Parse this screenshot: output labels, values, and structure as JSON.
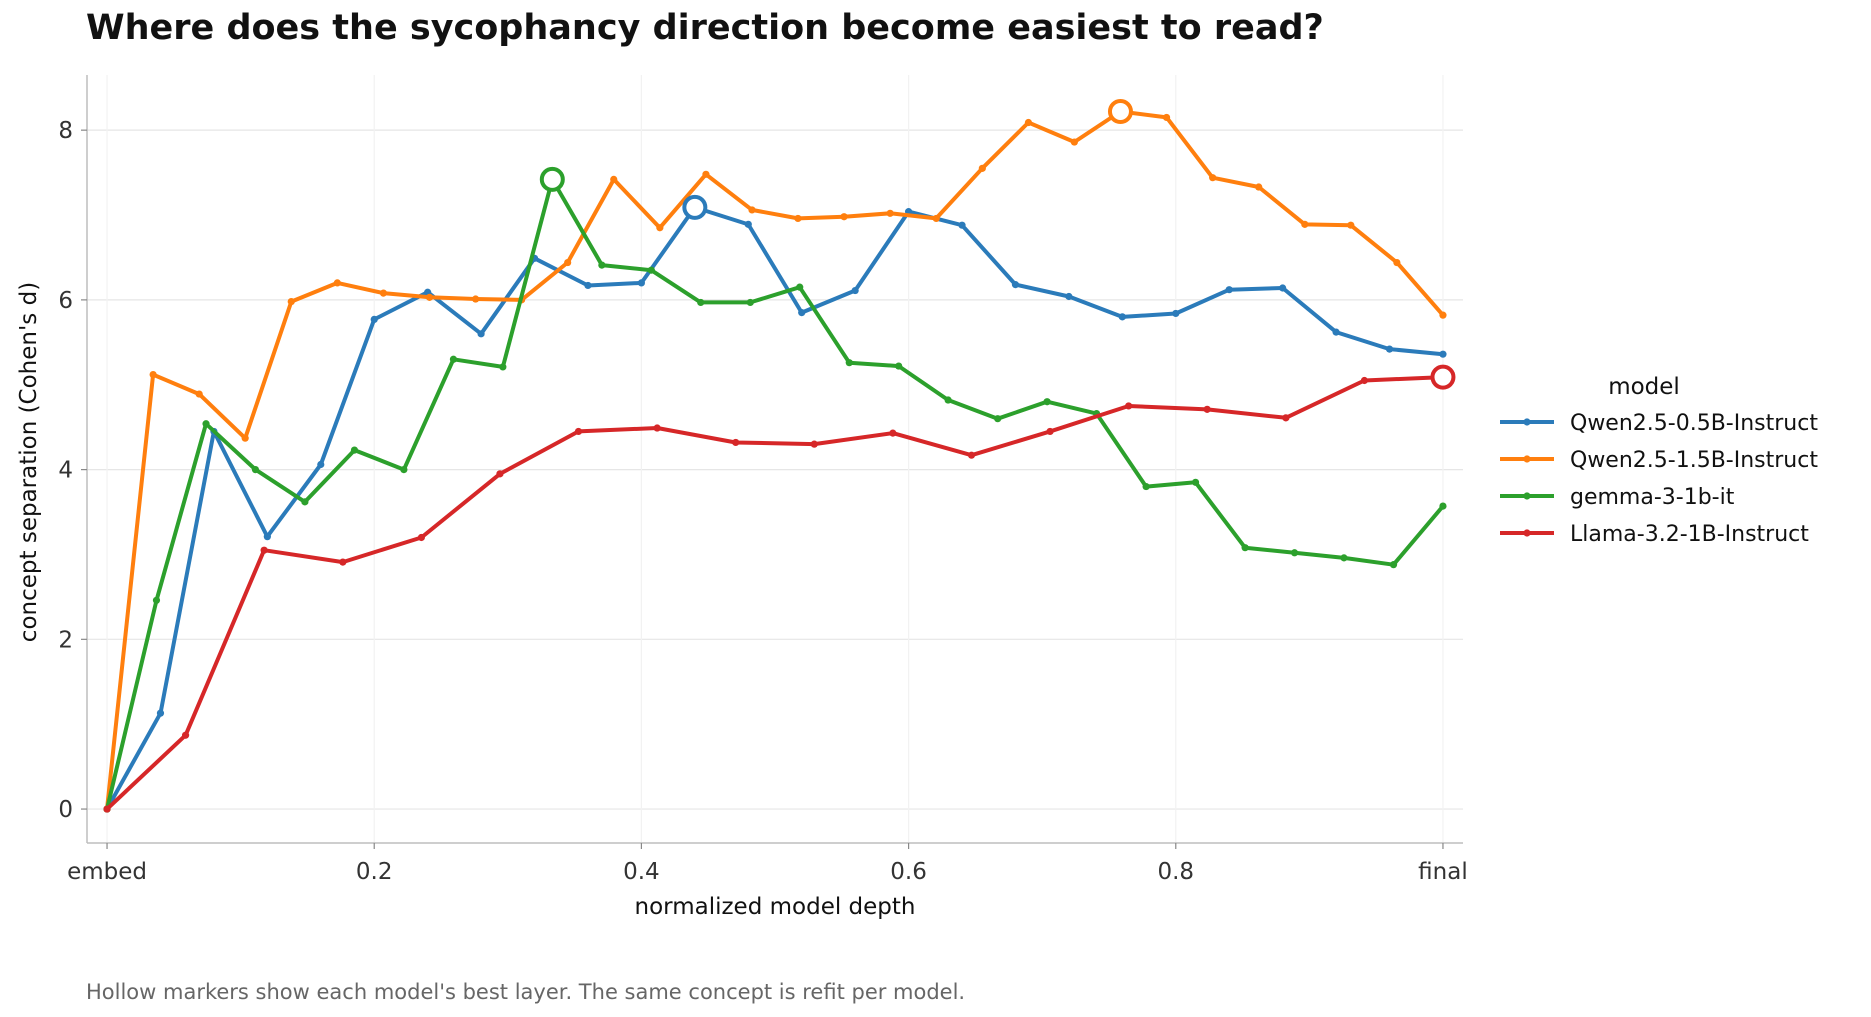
{
  "chart_data": {
    "type": "line",
    "title": "Where does the sycophancy direction become easiest to read?",
    "xlabel": "normalized model depth",
    "ylabel": "concept separation (Cohen's d)",
    "xlim": [
      -0.015,
      1.015
    ],
    "ylim": [
      -0.4,
      8.65
    ],
    "x_ticks": [
      {
        "value": 0,
        "label": "embed"
      },
      {
        "value": 0.2,
        "label": "0.2"
      },
      {
        "value": 0.4,
        "label": "0.4"
      },
      {
        "value": 0.6,
        "label": "0.6"
      },
      {
        "value": 0.8,
        "label": "0.8"
      },
      {
        "value": 1,
        "label": "final"
      }
    ],
    "y_ticks": [
      0,
      2,
      4,
      6,
      8
    ],
    "grid": true,
    "legend": {
      "title": "model",
      "position": "right"
    },
    "series": [
      {
        "name": "Qwen2.5-0.5B-Instruct",
        "color": "#2b7bba",
        "x": [
          0,
          0.04,
          0.08,
          0.12,
          0.16,
          0.2,
          0.24,
          0.28,
          0.32,
          0.36,
          0.4,
          0.44,
          0.48,
          0.52,
          0.56,
          0.6,
          0.64,
          0.68,
          0.72,
          0.76,
          0.8,
          0.84,
          0.88,
          0.92,
          0.96,
          1.0
        ],
        "y": [
          0,
          1.13,
          4.45,
          3.21,
          4.06,
          5.77,
          6.09,
          5.6,
          6.49,
          6.17,
          6.2,
          7.09,
          6.89,
          5.85,
          6.11,
          7.04,
          6.88,
          6.18,
          6.04,
          5.8,
          5.84,
          6.12,
          6.14,
          5.62,
          5.42,
          5.36
        ],
        "best": {
          "x": 0.44,
          "y": 7.09
        }
      },
      {
        "name": "Qwen2.5-1.5B-Instruct",
        "color": "#ff7f0e",
        "x": [
          0,
          0.0345,
          0.069,
          0.1034,
          0.1379,
          0.1724,
          0.2069,
          0.2414,
          0.2759,
          0.3103,
          0.3448,
          0.3793,
          0.4138,
          0.4483,
          0.4828,
          0.5172,
          0.5517,
          0.5862,
          0.6207,
          0.6552,
          0.6897,
          0.7241,
          0.7586,
          0.7931,
          0.8276,
          0.8621,
          0.8966,
          0.931,
          0.9655,
          1.0
        ],
        "y": [
          0,
          5.12,
          4.89,
          4.37,
          5.98,
          6.2,
          6.08,
          6.03,
          6.01,
          6.0,
          6.44,
          7.42,
          6.85,
          7.48,
          7.06,
          6.96,
          6.98,
          7.02,
          6.96,
          7.55,
          8.09,
          7.86,
          8.22,
          8.15,
          7.44,
          7.33,
          6.89,
          6.88,
          6.44,
          5.82
        ],
        "best": {
          "x": 0.7586,
          "y": 8.22
        }
      },
      {
        "name": "gemma-3-1b-it",
        "color": "#2ca02c",
        "x": [
          0,
          0.037,
          0.0741,
          0.1111,
          0.1481,
          0.1852,
          0.2222,
          0.2593,
          0.2963,
          0.3333,
          0.3704,
          0.4074,
          0.4444,
          0.4815,
          0.5185,
          0.5556,
          0.5926,
          0.6296,
          0.6667,
          0.7037,
          0.7407,
          0.7778,
          0.8148,
          0.8519,
          0.8889,
          0.9259,
          0.963,
          1.0
        ],
        "y": [
          0,
          2.46,
          4.54,
          4.0,
          3.62,
          4.23,
          4.0,
          5.3,
          5.21,
          7.42,
          6.41,
          6.35,
          5.97,
          5.97,
          6.15,
          5.26,
          5.22,
          4.82,
          4.6,
          4.8,
          4.66,
          3.8,
          3.85,
          3.08,
          3.02,
          2.96,
          2.88,
          3.57
        ],
        "best": {
          "x": 0.3333,
          "y": 7.42
        }
      },
      {
        "name": "Llama-3.2-1B-Instruct",
        "color": "#d62728",
        "x": [
          0,
          0.0588,
          0.1176,
          0.1765,
          0.2353,
          0.2941,
          0.3529,
          0.4118,
          0.4706,
          0.5294,
          0.5882,
          0.6471,
          0.7059,
          0.7647,
          0.8235,
          0.8824,
          0.9412,
          1.0
        ],
        "y": [
          0,
          0.87,
          3.05,
          2.91,
          3.2,
          3.95,
          4.45,
          4.49,
          4.32,
          4.3,
          4.43,
          4.17,
          4.45,
          4.75,
          4.71,
          4.61,
          5.05,
          5.09
        ],
        "best": {
          "x": 1.0,
          "y": 5.09
        }
      }
    ]
  },
  "caption": "Hollow markers show each model's best layer. The same concept is refit per model."
}
